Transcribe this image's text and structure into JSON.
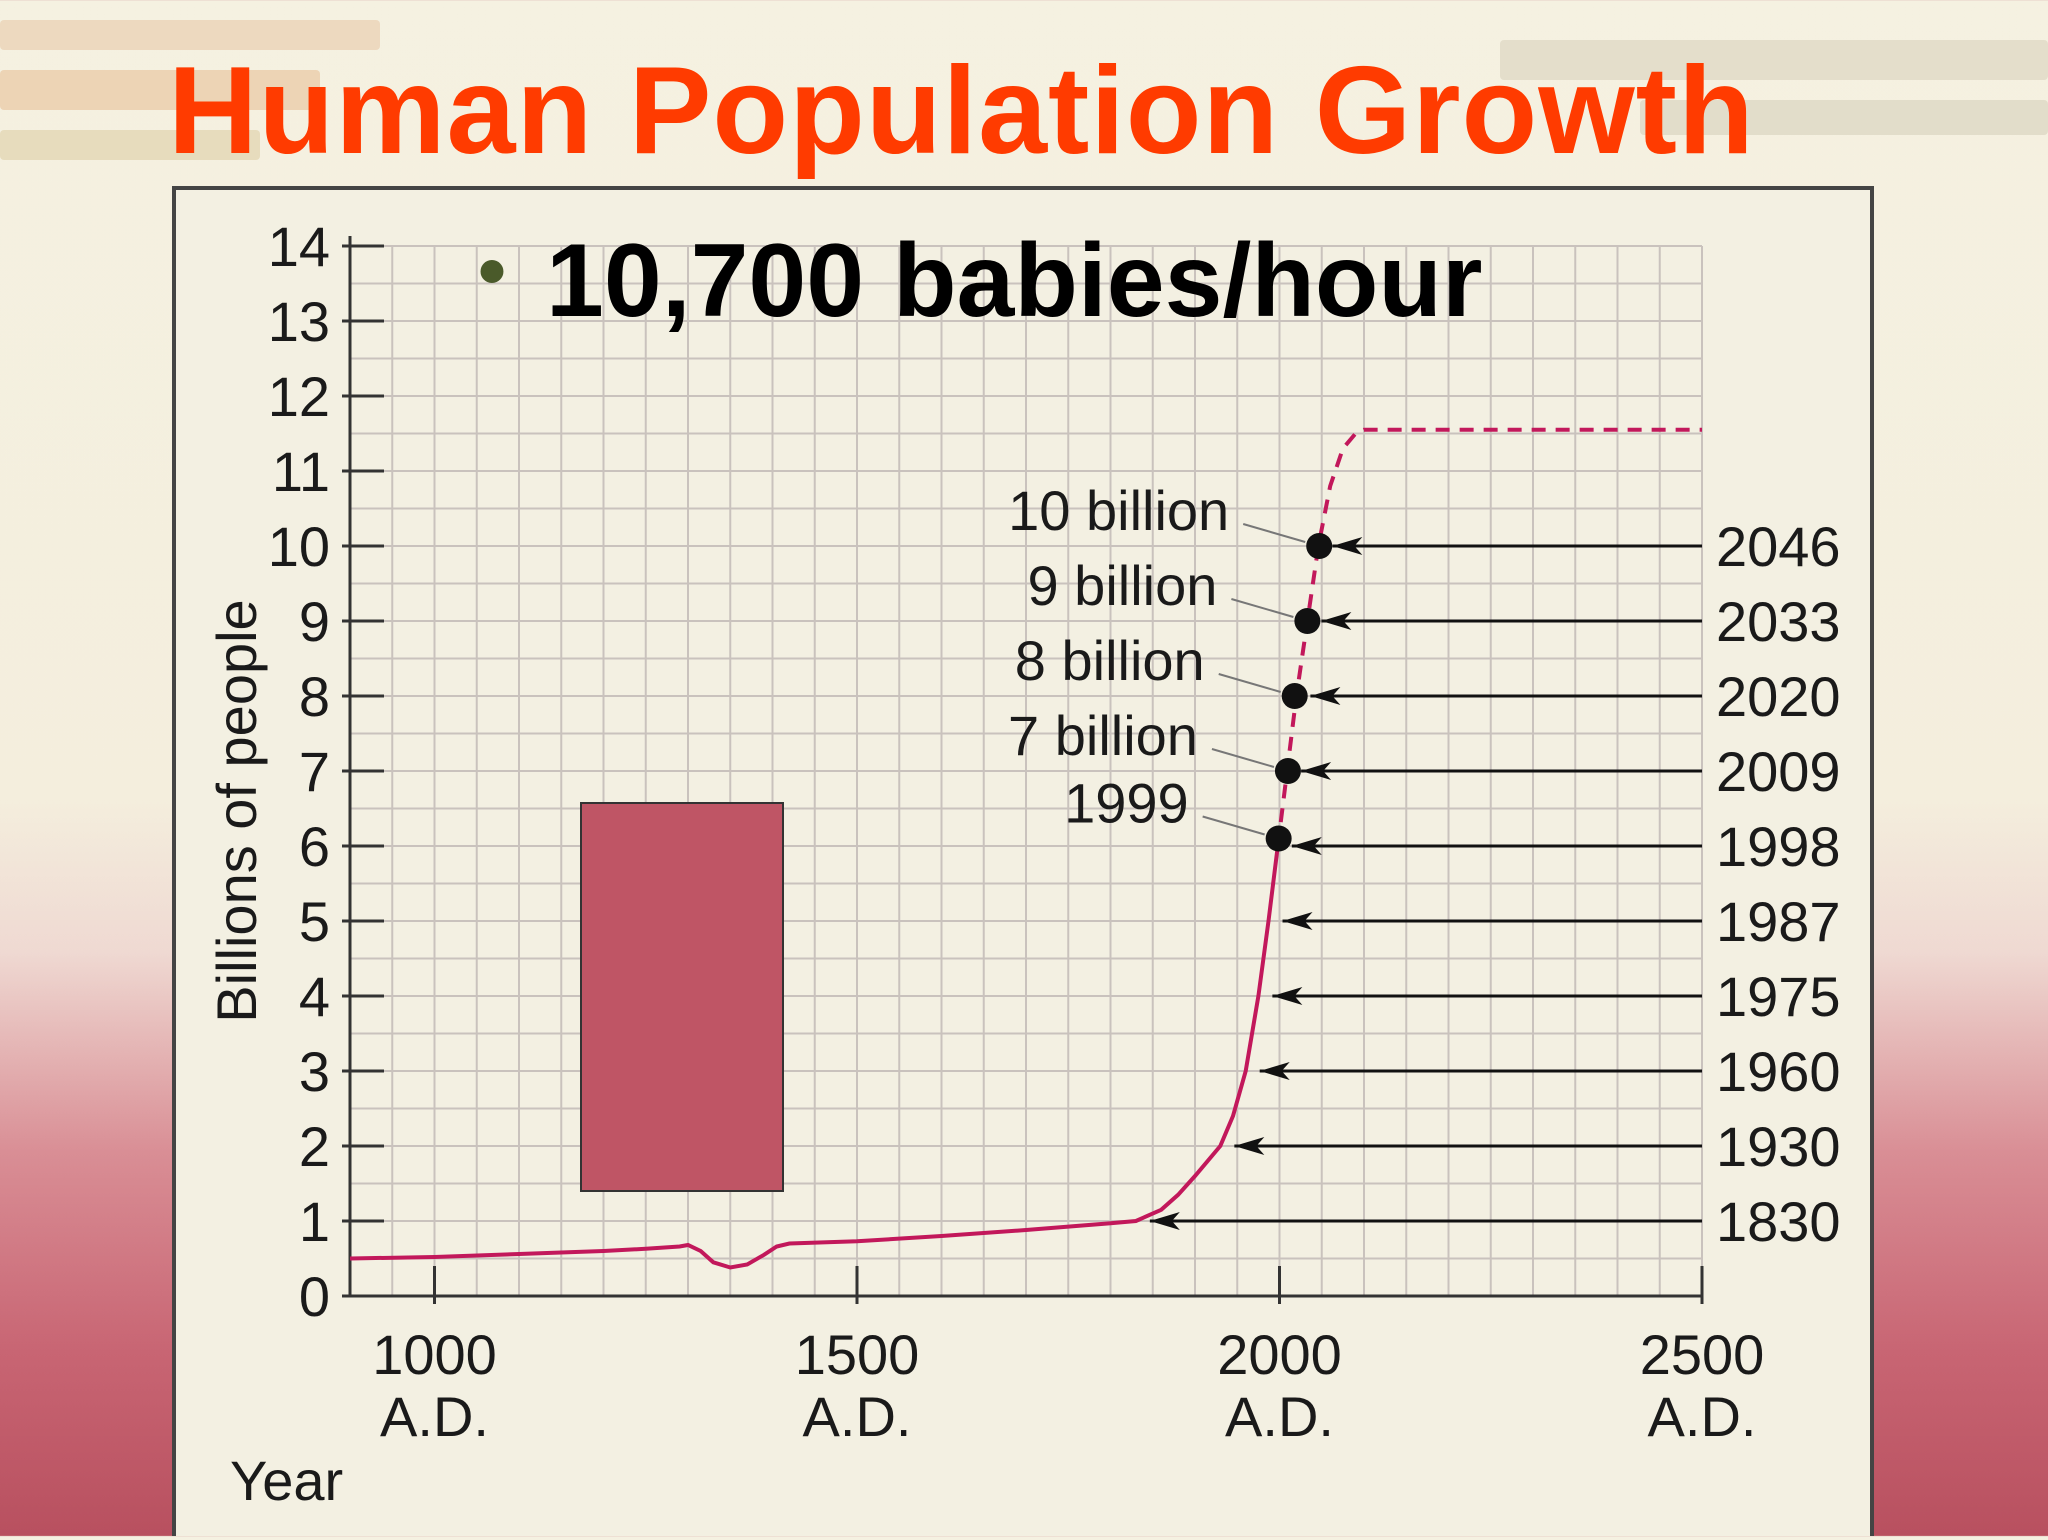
{
  "slide": {
    "title": "Human Population Growth",
    "bullet": "10,700 babies/hour"
  },
  "colors": {
    "title": "#ff3b00",
    "curve": "#c2185b",
    "grid": "#c9c2bd",
    "frame": "#f3f0e2",
    "rect": "#bf5565"
  },
  "chart_data": {
    "type": "line",
    "title": "",
    "xlabel": "Year",
    "ylabel": "Billions of people",
    "xlim": [
      900,
      2500
    ],
    "ylim": [
      0,
      14
    ],
    "grid": true,
    "y_ticks": [
      "0",
      "1",
      "2",
      "3",
      "4",
      "5",
      "6",
      "7",
      "8",
      "9",
      "10",
      "11",
      "12",
      "13",
      "14"
    ],
    "x_ticks": [
      {
        "value": 1000,
        "line1": "1000",
        "line2": "A.D."
      },
      {
        "value": 1500,
        "line1": "1500",
        "line2": "A.D."
      },
      {
        "value": 2000,
        "line1": "2000",
        "line2": "A.D."
      },
      {
        "value": 2500,
        "line1": "2500",
        "line2": "A.D."
      }
    ],
    "series": [
      {
        "style": "solid",
        "points": [
          [
            900,
            0.5
          ],
          [
            1000,
            0.52
          ],
          [
            1100,
            0.56
          ],
          [
            1200,
            0.6
          ],
          [
            1250,
            0.63
          ],
          [
            1290,
            0.66
          ],
          [
            1300,
            0.68
          ],
          [
            1315,
            0.6
          ],
          [
            1330,
            0.45
          ],
          [
            1350,
            0.38
          ],
          [
            1370,
            0.42
          ],
          [
            1390,
            0.55
          ],
          [
            1405,
            0.66
          ],
          [
            1420,
            0.7
          ],
          [
            1500,
            0.73
          ],
          [
            1600,
            0.8
          ],
          [
            1700,
            0.88
          ],
          [
            1800,
            0.97
          ],
          [
            1830,
            1.0
          ],
          [
            1860,
            1.15
          ],
          [
            1880,
            1.35
          ],
          [
            1900,
            1.6
          ],
          [
            1930,
            2.0
          ],
          [
            1945,
            2.4
          ],
          [
            1960,
            3.0
          ],
          [
            1975,
            4.0
          ],
          [
            1987,
            5.0
          ],
          [
            1998,
            6.0
          ]
        ]
      },
      {
        "style": "dashed",
        "points": [
          [
            1998,
            6.0
          ],
          [
            2009,
            7.0
          ],
          [
            2020,
            8.0
          ],
          [
            2033,
            9.0
          ],
          [
            2046,
            10.0
          ],
          [
            2060,
            10.8
          ],
          [
            2075,
            11.3
          ],
          [
            2090,
            11.5
          ],
          [
            2100,
            11.55
          ],
          [
            2500,
            11.55
          ]
        ]
      }
    ],
    "milestones": [
      {
        "billions": 1,
        "year": "1830",
        "x": 1830
      },
      {
        "billions": 2,
        "year": "1930",
        "x": 1930
      },
      {
        "billions": 3,
        "year": "1960",
        "x": 1960
      },
      {
        "billions": 4,
        "year": "1975",
        "x": 1975
      },
      {
        "billions": 5,
        "year": "1987",
        "x": 1987
      },
      {
        "billions": 6,
        "year": "1998",
        "x": 1998
      },
      {
        "billions": 7,
        "year": "2009",
        "x": 2009
      },
      {
        "billions": 8,
        "year": "2020",
        "x": 2020
      },
      {
        "billions": 9,
        "year": "2033",
        "x": 2033
      },
      {
        "billions": 10,
        "year": "2046",
        "x": 2046
      }
    ],
    "projection_points": [
      {
        "label": "1999",
        "x": 1999,
        "y": 6.1
      },
      {
        "label": "7 billion",
        "x": 2010,
        "y": 7
      },
      {
        "label": "8 billion",
        "x": 2018,
        "y": 8
      },
      {
        "label": "9 billion",
        "x": 2033,
        "y": 9
      },
      {
        "label": "10 billion",
        "x": 2047,
        "y": 10
      }
    ]
  }
}
